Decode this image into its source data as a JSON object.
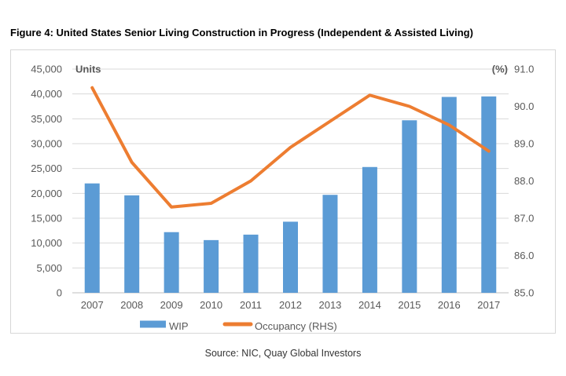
{
  "figure": {
    "title": "Figure 4: United States Senior Living Construction in Progress (Independent & Assisted Living)",
    "source": "Source: NIC, Quay Global Investors"
  },
  "chart_data": {
    "type": "bar+line combo",
    "categories": [
      "2007",
      "2008",
      "2009",
      "2010",
      "2011",
      "2012",
      "2013",
      "2014",
      "2015",
      "2016",
      "2017"
    ],
    "series": [
      {
        "name": "WIP",
        "type": "bar",
        "axis": "left",
        "color": "#5B9BD5",
        "values": [
          22000,
          19600,
          12200,
          10600,
          11700,
          14300,
          19700,
          25300,
          34700,
          39400,
          39500
        ]
      },
      {
        "name": "Occupancy (RHS)",
        "type": "line",
        "axis": "right",
        "color": "#ED7D31",
        "values": [
          90.5,
          88.5,
          87.3,
          87.4,
          88.0,
          88.9,
          89.6,
          90.3,
          90.0,
          89.5,
          88.8
        ]
      }
    ],
    "left_axis": {
      "title": "Units",
      "min": 0,
      "max": 45000,
      "step": 5000
    },
    "right_axis": {
      "title": "(%)",
      "min": 85.0,
      "max": 91.0,
      "step": 1.0
    },
    "grid": true,
    "legend_position": "bottom",
    "colors": {
      "grid": "#D9D9D9",
      "axis_line": "#BFBFBF",
      "tick_text": "#595959"
    }
  }
}
